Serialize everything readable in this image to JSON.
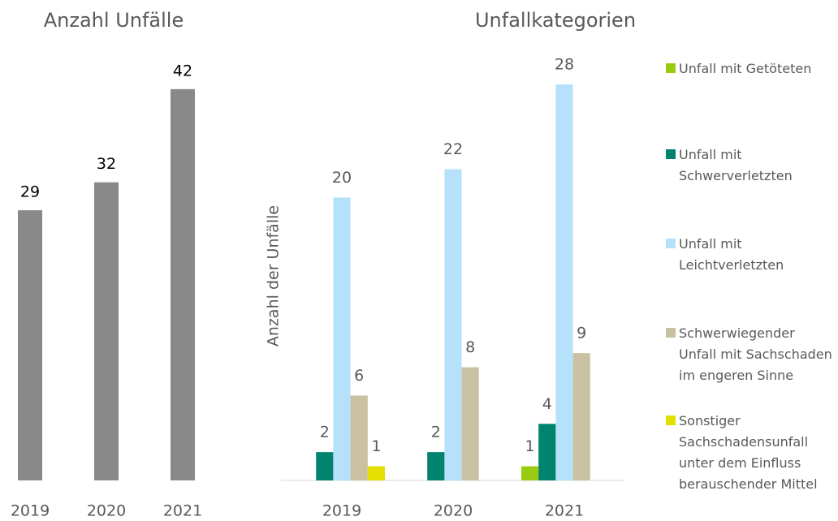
{
  "chart_data": [
    {
      "type": "bar",
      "title": "Anzahl  Unfälle",
      "categories": [
        "2019",
        "2020",
        "2021"
      ],
      "values": [
        29,
        32,
        42
      ],
      "color": "#898989"
    },
    {
      "type": "grouped_bar",
      "title": "Unfallkategorien",
      "y_label": "Anzahl der Unfälle",
      "categories": [
        "2019",
        "2020",
        "2021"
      ],
      "series": [
        {
          "name": "Unfall mit Getöteten",
          "color": "#99cc11",
          "values": [
            null,
            null,
            1
          ]
        },
        {
          "name": "Unfall mit Schwerverletzten",
          "color": "#00836f",
          "values": [
            2,
            2,
            4
          ]
        },
        {
          "name": "Unfall mit Leichtverletzten",
          "color": "#b5e2fa",
          "values": [
            20,
            22,
            28
          ]
        },
        {
          "name": "Schwerwiegender Unfall mit Sachschaden im engeren Sinne",
          "color": "#c9c1a2",
          "values": [
            6,
            8,
            9
          ]
        },
        {
          "name": "Sonstiger Sachschadensunfall unter dem Einfluss berauschender Mittel",
          "color": "#e3e000",
          "values": [
            1,
            null,
            null
          ]
        }
      ],
      "legend": "right"
    }
  ]
}
